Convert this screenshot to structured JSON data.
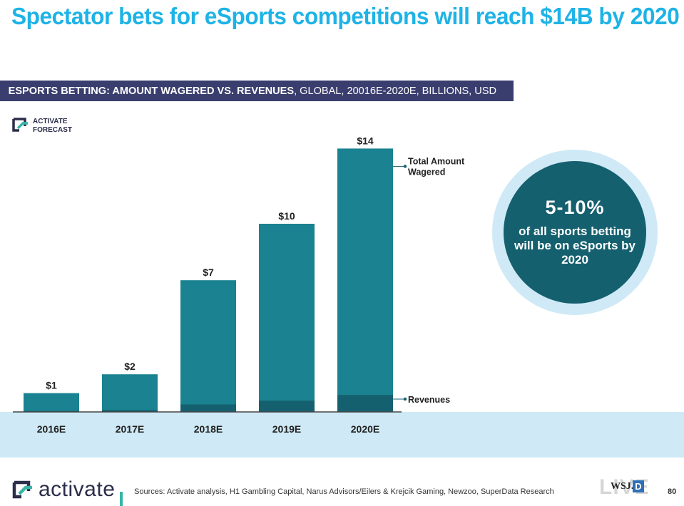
{
  "slide": {
    "title": "Spectator bets for eSports competitions will reach $14B by 2020",
    "subtitle_bold": "ESPORTS BETTING: AMOUNT WAGERED VS. REVENUES",
    "subtitle_rest": ", GLOBAL, 20016E-2020E, BILLIONS, USD",
    "forecast_badge": [
      "ACTIVATE",
      "FORECAST"
    ],
    "callout": {
      "percent": "5-10%",
      "text": "of all sports betting will be on eSports by 2020"
    },
    "footer": {
      "logo_text": "activate",
      "sources": "Sources: Activate analysis, H1 Gambling Capital, Narus Advisors/Eilers & Krejcik Gaming, Newzoo, SuperData Research",
      "wsj_live": "LIVE",
      "wsj_mark": "WSJ.",
      "wsj_d": "D",
      "page": "80"
    }
  },
  "colors": {
    "title": "#1eb3e6",
    "subtitle_bar": "#3a3e6e",
    "wagered": "#1a8290",
    "revenues": "#15606f",
    "band": "#cfeaf6"
  },
  "chart_data": {
    "type": "bar",
    "stacked": true,
    "categories": [
      "2016E",
      "2017E",
      "2018E",
      "2019E",
      "2020E"
    ],
    "series": [
      {
        "name": "Revenues",
        "values": [
          0.05,
          0.1,
          0.4,
          0.6,
          0.9
        ]
      },
      {
        "name": "Total Amount Wagered",
        "values": [
          1,
          2,
          7,
          10,
          14
        ]
      }
    ],
    "data_labels": [
      "$1",
      "$2",
      "$7",
      "$10",
      "$14"
    ],
    "legend_placement": "right",
    "grid": false
  }
}
